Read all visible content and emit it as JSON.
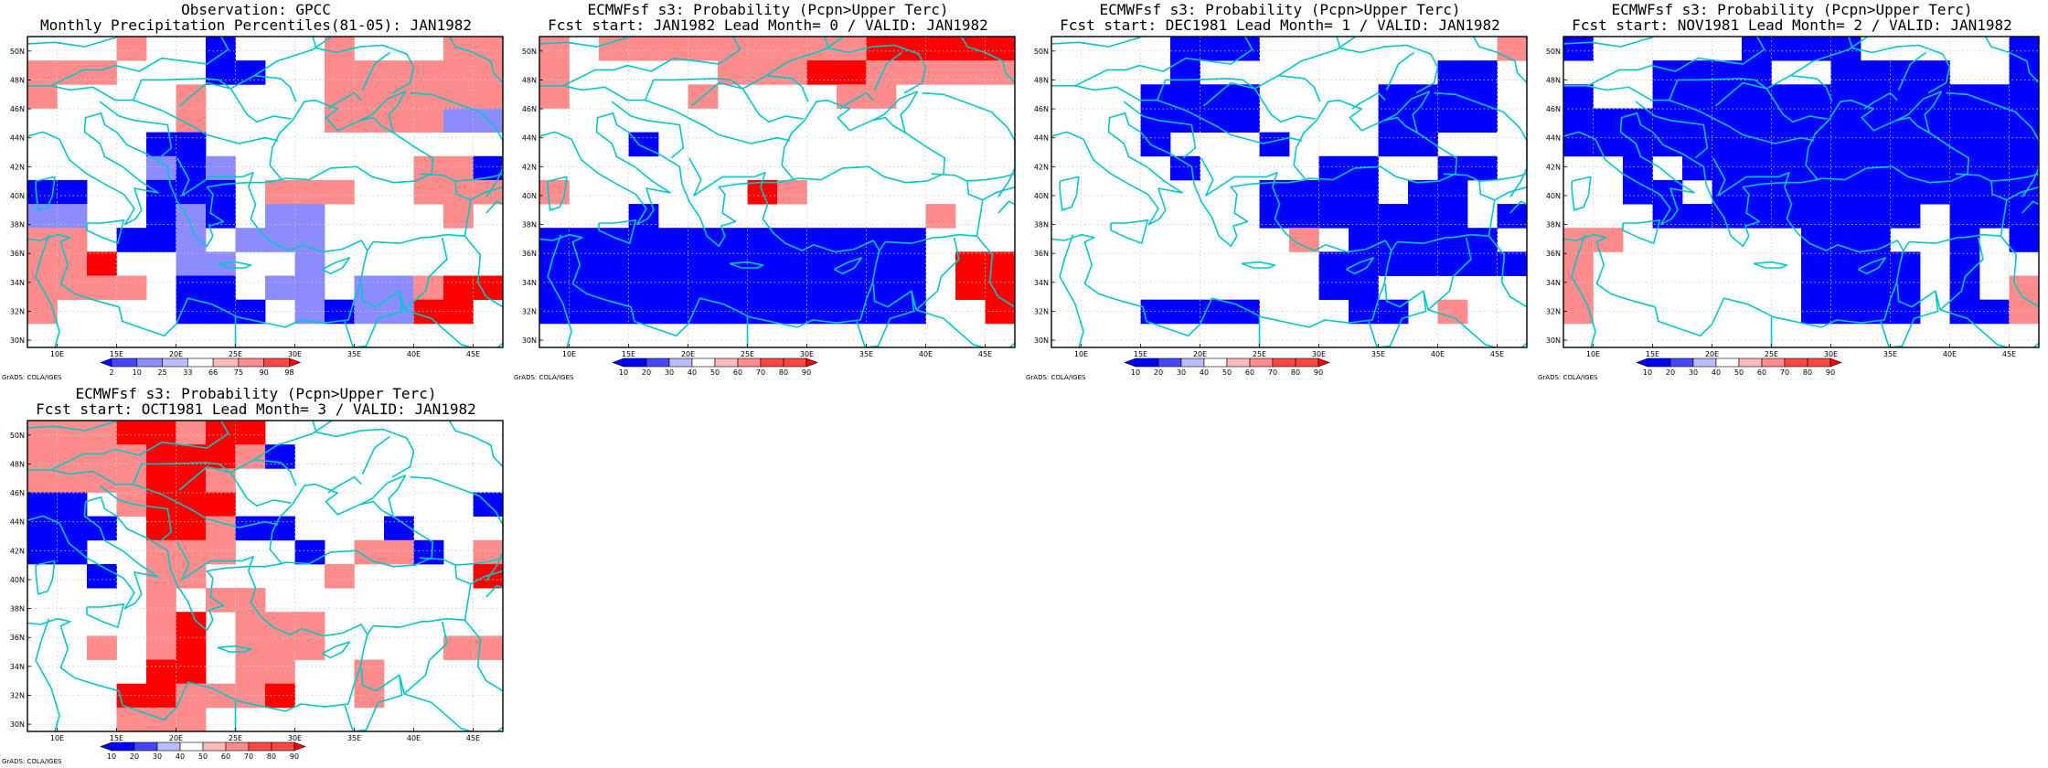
{
  "colors": {
    "blue3": "#0000ff",
    "blue2": "#4646ff",
    "blue1": "#8c8cff",
    "blue0": "#bbbbff",
    "white": "#ffffff",
    "red0": "#ffbbbb",
    "red1": "#ff8c8c",
    "red2": "#ff4646",
    "red3": "#ff0000",
    "coast": "#00c8c8",
    "grid": "#cccccc"
  },
  "lon_labels": [
    "10E",
    "15E",
    "20E",
    "25E",
    "30E",
    "35E",
    "40E",
    "45E"
  ],
  "lat_labels": [
    "50N",
    "48N",
    "46N",
    "44N",
    "42N",
    "40N",
    "38N",
    "36N",
    "34N",
    "32N",
    "30N"
  ],
  "credit": "GrADS: COLA/IGES",
  "panels": [
    {
      "title1": "Observation: GPCC",
      "title2": "Monthly Precipitation Percentiles(81-05): JAN1982",
      "colorbar_labels": [
        "2",
        "10",
        "25",
        "33",
        "66",
        "75",
        "90",
        "98"
      ]
    },
    {
      "title1": "ECMWFsf s3: Probability (Pcpn>Upper Terc)",
      "title2": "Fcst start: JAN1982  Lead Month= 0 / VALID: JAN1982",
      "colorbar_labels": [
        "10",
        "20",
        "30",
        "40",
        "50",
        "60",
        "70",
        "80",
        "90"
      ]
    },
    {
      "title1": "ECMWFsf s3: Probability (Pcpn>Upper Terc)",
      "title2": "Fcst start: DEC1981  Lead Month= 1 / VALID: JAN1982",
      "colorbar_labels": [
        "10",
        "20",
        "30",
        "40",
        "50",
        "60",
        "70",
        "80",
        "90"
      ]
    },
    {
      "title1": "ECMWFsf s3: Probability (Pcpn>Upper Terc)",
      "title2": "Fcst start: NOV1981  Lead Month= 2 / VALID: JAN1982",
      "colorbar_labels": [
        "10",
        "20",
        "30",
        "40",
        "50",
        "60",
        "70",
        "80",
        "90"
      ]
    },
    {
      "title1": "ECMWFsf s3: Probability (Pcpn>Upper Terc)",
      "title2": "Fcst start: OCT1981  Lead Month= 3 / VALID: JAN1982",
      "colorbar_labels": [
        "10",
        "20",
        "30",
        "40",
        "50",
        "60",
        "70",
        "80",
        "90"
      ]
    }
  ],
  "grids": [
    [
      "WWWrWWBWWWrWWWrr",
      "rrrWWWBBWWrrrrrr",
      "rWWWWrWWWWrrrrrr",
      "WWWWWrWWWWrrrrbb",
      "WWWWBBWWWWWWWWWW",
      "WWWWbBbWWWWWWrrB",
      "BBWWBBBWrrrWWrrr",
      "bbWWBbBWbbWWWWrW",
      "rrWBBbWbbbWWWWWW",
      "rrRWWbbWWbWWWWWW",
      "rrrrWBBWbbWbbrRR",
      "rWWWWBBBWbBbbRRW",
      "WWWWWWWWWWWWWWWW"
    ],
    [
      "rWrrrrrrrrrRRRRR",
      "rWWWWWrrrRRrrrrr",
      "rWWWWrWWWWrrWWWW",
      "WWWWWWWWWWWWWWWW",
      "WWWBWWWWWWWWWWWW",
      "WWWWWWWWWWWWWWWW",
      "rWWWWWWRrWWWWWWW",
      "WWWBWWWWWWWWWrWW",
      "BBBBBBBBBBBBBWWW",
      "BBBBBBBBBBBBBWRR",
      "BBBBBBBBBBBBBWRR",
      "BBBBBBBBBBBBBWWR",
      "WWWWWWWWWWWWWWWW"
    ],
    [
      "WWWWBBBWWWWWWWWr",
      "WWWWBWWWWWWWWBBW",
      "WWWBBBBWWWWBBBBW",
      "WWWBBBBWWWWBBBBW",
      "WWWBWWWBWWWBBWWW",
      "WWWWBWWWWBBWWBBW",
      "WWWWWWWBBBBWBBWW",
      "WWWWWWWBBBBBBBWB",
      "WWWWWWWWrWBBBBBW",
      "WWWWWWWWWBBBBBBB",
      "WWWWWWWWWBBWWWWW",
      "WWWBBBBWWWBBWrWW",
      "WWWWWWWWWWWWWWWW"
    ],
    [
      "BWWWWWBBBBWWWWWB",
      "WWWBBBBWWBBBBWWB",
      "BWWBBBBBBBBBBBBB",
      "BBBBBBBBBBBBBBBB",
      "BBBBBBBBBBBBBBBB",
      "WWBWBBBBBBBBBBBB",
      "WWBBWBBBBBBBBBBB",
      "WWWBBBBBBBBBWBBB",
      "rrWWWWWWBBBWWBWB",
      "rWWWWWWWBBBBWBWW",
      "rWWWWWWWBBBBWBWr",
      "rWWWWWWWBBBBWBBr",
      "WWWWWWWWWWWWWWWW"
    ],
    [
      "rrrRRrRRWWWWWWWW",
      "rrrrRRRrBWWWWWWW",
      "rrrrRRrWWWWWWWWW",
      "BBWrRRRWWWWWWWWB",
      "BBBWRRrBBWWWBWWW",
      "BBWWrrrWWBWrrBWr",
      "WWBWrrWWWWrWWWWR",
      "WWWWrWrrWWWWWWWW",
      "WWWWrRWrrrWWWWWW",
      "WWrWrRWrrrWWWWrr",
      "WWWWRRWrrWWrWWWW",
      "WWWRRrrrRWWrWWWW",
      "WWWrrrWWWWWWWWWW"
    ]
  ]
}
